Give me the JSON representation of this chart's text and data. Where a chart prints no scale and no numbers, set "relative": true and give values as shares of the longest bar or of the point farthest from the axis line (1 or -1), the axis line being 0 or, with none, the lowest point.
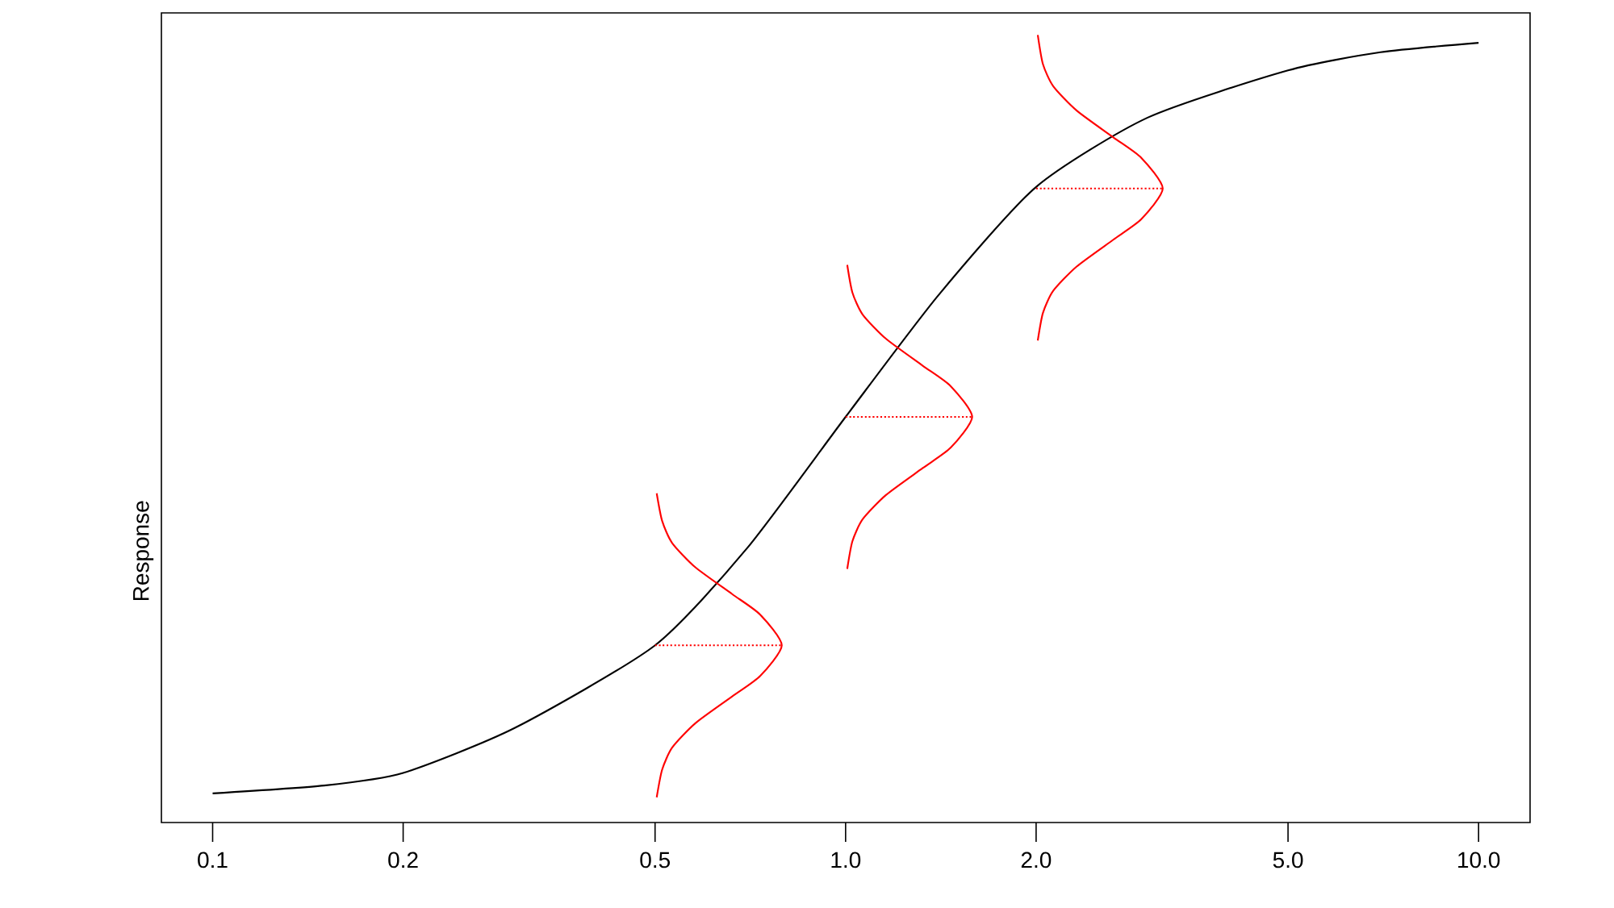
{
  "chart_data": {
    "type": "line",
    "ylabel": "Response",
    "relative": true,
    "log": "x",
    "marker": "none",
    "xlim": [
      0.083,
      12.06
    ],
    "xticks": [
      0.1,
      0.2,
      0.5,
      {
        "value": 1,
        "label": "1.0"
      },
      {
        "value": 2,
        "label": "2.0"
      },
      {
        "value": 5,
        "label": "5.0"
      },
      {
        "value": 10,
        "label": "10.0"
      }
    ],
    "series": [
      {
        "color": "#000000",
        "line_style": "solid",
        "x": [
          0.1,
          0.15,
          0.2,
          0.3,
          0.5,
          0.7,
          1,
          1.4,
          2,
          3,
          5,
          7,
          10
        ],
        "values": [
          0.037,
          0.047,
          0.063,
          0.12,
          0.225,
          0.349,
          0.515,
          0.669,
          0.807,
          0.895,
          0.955,
          0.978,
          0.99
        ]
      },
      {
        "color": "#ff0000",
        "line_style": "solid",
        "x": [
          0.503,
          0.513,
          0.532,
          0.579,
          0.662,
          0.733,
          0.793,
          0.733,
          0.662,
          0.579,
          0.532,
          0.513,
          0.503
        ],
        "values": [
          0.032,
          0.067,
          0.095,
          0.126,
          0.16,
          0.186,
          0.225,
          0.264,
          0.29,
          0.324,
          0.355,
          0.383,
          0.418
        ]
      },
      {
        "color": "#ff0000",
        "line_style": "solid",
        "x": [
          1.006,
          1.025,
          1.064,
          1.159,
          1.324,
          1.466,
          1.585,
          1.466,
          1.324,
          1.159,
          1.064,
          1.025,
          1.006
        ],
        "values": [
          0.322,
          0.357,
          0.385,
          0.416,
          0.45,
          0.476,
          0.515,
          0.554,
          0.58,
          0.614,
          0.645,
          0.673,
          0.708
        ]
      },
      {
        "color": "#ff0000",
        "line_style": "solid",
        "x": [
          2.012,
          2.05,
          2.128,
          2.318,
          2.648,
          2.932,
          3.17,
          2.932,
          2.648,
          2.318,
          2.128,
          2.05,
          2.012
        ],
        "values": [
          0.612,
          0.647,
          0.675,
          0.706,
          0.74,
          0.766,
          0.805,
          0.844,
          0.87,
          0.904,
          0.935,
          0.963,
          1.0
        ]
      },
      {
        "color": "#ff0000",
        "line_style": "dotted",
        "x": [
          0.5,
          0.793
        ],
        "values": [
          0.225,
          0.225
        ]
      },
      {
        "color": "#ff0000",
        "line_style": "dotted",
        "x": [
          1,
          1.585
        ],
        "values": [
          0.515,
          0.515
        ]
      },
      {
        "color": "#ff0000",
        "line_style": "dotted",
        "x": [
          2,
          3.17
        ],
        "values": [
          0.805,
          0.805
        ]
      }
    ]
  }
}
